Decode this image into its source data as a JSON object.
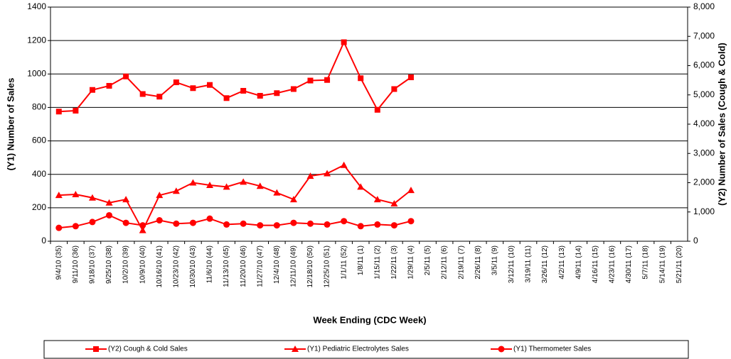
{
  "chart_data": {
    "type": "line",
    "xlabel": "Week Ending (CDC Week)",
    "ylabel": "(Y1) Number of Sales",
    "y2label": "(Y2) Number of Sales (Cough & Cold)",
    "categories": [
      "9/4/10 (35)",
      "9/11/10 (36)",
      "9/18/10 (37)",
      "9/25/10 (38)",
      "10/2/10 (39)",
      "10/9/10 (40)",
      "10/16/10 (41)",
      "10/23/10 (42)",
      "10/30/10 (43)",
      "11/6/10 (44)",
      "11/13/10 (45)",
      "11/20/10 (46)",
      "11/27/10 (47)",
      "12/4/10 (48)",
      "12/11/10 (49)",
      "12/18/10 (50)",
      "12/25/10 (51)",
      "1/1/11 (52)",
      "1/8/11 (1)",
      "1/15/11 (2)",
      "1/22/11 (3)",
      "1/29/11 (4)",
      "2/5/11 (5)",
      "2/12/11 (6)",
      "2/19/11 (7)",
      "2/26/11 (8)",
      "3/5/11 (9)",
      "3/12/11 (10)",
      "3/19/11 (11)",
      "3/26/11 (12)",
      "4/2/11 (13)",
      "4/9/11 (14)",
      "4/16/11 (15)",
      "4/23/11 (16)",
      "4/30/11 (17)",
      "5/7/11 (18)",
      "5/14/11 (19)",
      "5/21/11 (20)"
    ],
    "series": [
      {
        "name": "(Y2) Cough & Cold Sales",
        "color": "#ff0000",
        "marker": "square",
        "axis": "y2",
        "values": [
          4430,
          4460,
          5170,
          5310,
          5630,
          5030,
          4940,
          5430,
          5230,
          5340,
          4890,
          5140,
          4970,
          5060,
          5200,
          5490,
          5510,
          6800,
          5570,
          4490,
          5200,
          5600,
          null,
          null,
          null,
          null,
          null,
          null,
          null,
          null,
          null,
          null,
          null,
          null,
          null,
          null,
          null,
          null
        ]
      },
      {
        "name": "(Y1) Pediatric Electrolytes Sales",
        "color": "#ff0000",
        "marker": "triangle",
        "values": [
          275,
          280,
          260,
          230,
          250,
          65,
          275,
          300,
          350,
          335,
          325,
          355,
          330,
          290,
          250,
          390,
          405,
          455,
          325,
          250,
          225,
          305,
          null,
          null,
          null,
          null,
          null,
          null,
          null,
          null,
          null,
          null,
          null,
          null,
          null,
          null,
          null,
          null
        ]
      },
      {
        "name": "(Y1) Thermometer Sales",
        "color": "#ff0000",
        "marker": "circle",
        "values": [
          80,
          90,
          115,
          155,
          110,
          95,
          125,
          105,
          110,
          135,
          100,
          105,
          95,
          95,
          110,
          105,
          100,
          120,
          90,
          100,
          95,
          120,
          null,
          null,
          null,
          null,
          null,
          null,
          null,
          null,
          null,
          null,
          null,
          null,
          null,
          null,
          null,
          null
        ]
      }
    ],
    "ylim": [
      0,
      1400
    ],
    "yticks": [
      0,
      200,
      400,
      600,
      800,
      1000,
      1200,
      1400
    ],
    "y2lim": [
      0,
      8000
    ],
    "y2ticks": [
      0,
      {
        "value": 1000,
        "label": "1,000"
      },
      {
        "value": 2000,
        "label": "2,000"
      },
      {
        "value": 3000,
        "label": "3,000"
      },
      {
        "value": 4000,
        "label": "4,000"
      },
      {
        "value": 5000,
        "label": "5,000"
      },
      {
        "value": 6000,
        "label": "6,000"
      },
      {
        "value": 7000,
        "label": "7,000"
      },
      {
        "value": 8000,
        "label": "8,000"
      }
    ],
    "grid": true,
    "legend": "bottom"
  }
}
